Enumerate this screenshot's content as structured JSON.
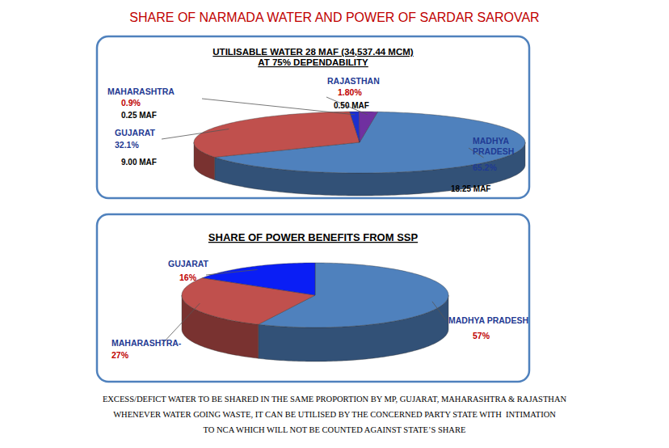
{
  "title": "SHARE OF NARMADA WATER AND POWER OF SARDAR SAROVAR",
  "chart_data": [
    {
      "type": "pie",
      "title": "UTILISABLE WATER 28 MAF (34,537.44 MCM)",
      "subtitle": "AT 75% DEPENDABILITY",
      "categories": [
        "MADHYA PRADESH",
        "GUJARAT",
        "MAHARASHTRA",
        "RAJASTHAN"
      ],
      "values": [
        65.2,
        32.1,
        0.9,
        1.8
      ],
      "value_labels": [
        "65.2%",
        "32.1%",
        "0.9%",
        "1.80%"
      ],
      "amount_labels": [
        "18.25 MAF",
        "9.00 MAF",
        "0.25 MAF",
        "0.50 MAF"
      ],
      "colors": [
        "#4f81bd",
        "#c0504d",
        "#1c2fd0",
        "#7030a0"
      ],
      "data_labels": true
    },
    {
      "type": "pie",
      "title": "SHARE OF POWER BENEFITS FROM SSP",
      "categories": [
        "MADHYA PRADESH",
        "MAHARASHTRA-",
        "GUJARAT"
      ],
      "values": [
        57,
        27,
        16
      ],
      "value_labels": [
        "57%",
        "27%",
        "16%"
      ],
      "colors": [
        "#4f81bd",
        "#c0504d",
        "#0a1ef5"
      ],
      "data_labels": true
    }
  ],
  "notes": [
    "EXCESS/DEFICT WATER TO BE SHARED IN THE SAME PROPORTION BY MP, GUJARAT, MAHARASHTRA & RAJASTHAN",
    "WHENEVER WATER GOING WASTE, IT CAN BE UTILISED BY THE CONCERNED PARTY STATE WITH  INTIMATION",
    "TO NCA WHICH WILL NOT BE COUNTED AGAINST STATE’S SHARE"
  ]
}
